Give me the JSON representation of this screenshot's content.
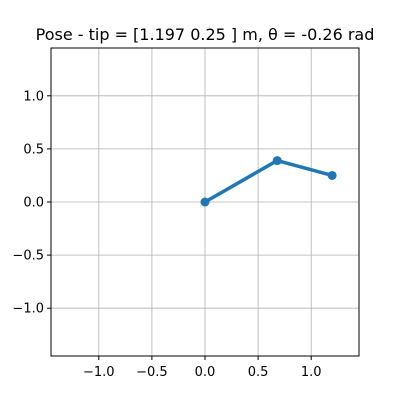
{
  "chart_data": {
    "type": "line",
    "title": "Pose - tip = [1.197 0.25 ] m, θ = -0.26 rad",
    "xlabel": "",
    "ylabel": "",
    "xlim": [
      -1.45,
      1.45
    ],
    "ylim": [
      -1.45,
      1.45
    ],
    "grid": true,
    "aspect": "equal",
    "series": [
      {
        "x": [
          0.0,
          0.68,
          1.197
        ],
        "y": [
          0.0,
          0.39,
          0.25
        ],
        "color": "#1f77b4",
        "marker": "circle"
      }
    ],
    "x_ticks": [
      {
        "value": -1.0,
        "label": "−1.0"
      },
      {
        "value": -0.5,
        "label": "−0.5"
      },
      {
        "value": 0.0,
        "label": "0.0"
      },
      {
        "value": 0.5,
        "label": "0.5"
      },
      {
        "value": 1.0,
        "label": "1.0"
      }
    ],
    "y_ticks": [
      {
        "value": 1.0,
        "label": "1.0"
      },
      {
        "value": 0.5,
        "label": "0.5"
      },
      {
        "value": 0.0,
        "label": "0.0"
      },
      {
        "value": -0.5,
        "label": "−0.5"
      },
      {
        "value": -1.0,
        "label": "−1.0"
      }
    ]
  }
}
